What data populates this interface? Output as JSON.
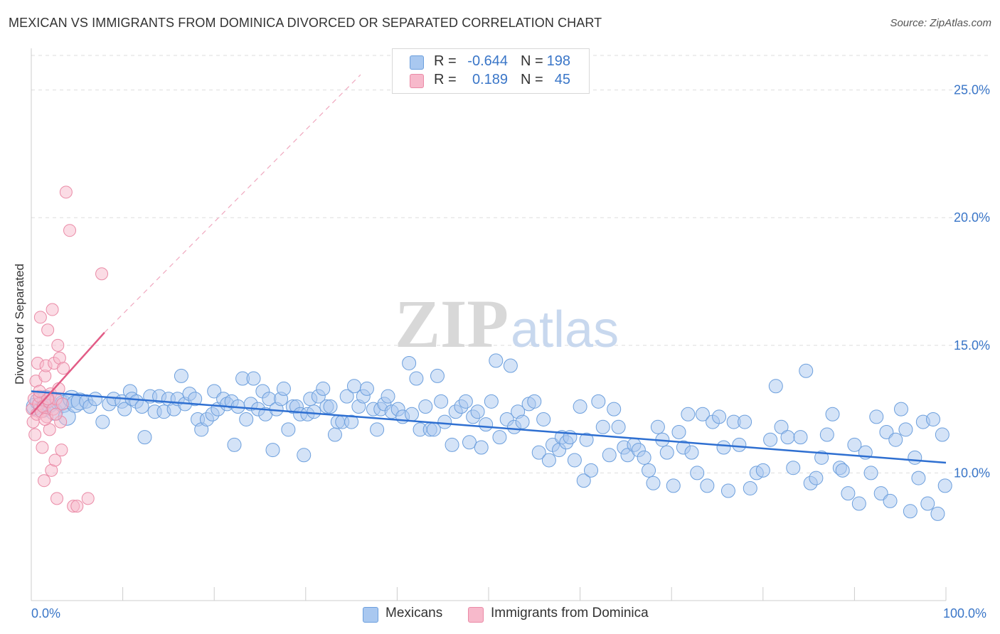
{
  "header": {
    "title": "MEXICAN VS IMMIGRANTS FROM DOMINICA DIVORCED OR SEPARATED CORRELATION CHART",
    "source": "Source: ZipAtlas.com"
  },
  "watermark": {
    "zip": "ZIP",
    "atlas": "atlas"
  },
  "legend": {
    "rows": [
      {
        "r_label": "R =",
        "r_value": "-0.644",
        "n_label": "N =",
        "n_value": "198"
      },
      {
        "r_label": "R =",
        "r_value": "0.189",
        "n_label": "N =",
        "n_value": "45"
      }
    ]
  },
  "bottom_legend": {
    "series1": "Mexicans",
    "series2": "Immigrants from Dominica"
  },
  "colors": {
    "blue_fill": "#a9c8f0",
    "blue_stroke": "#6c9fdd",
    "blue_line": "#2e6fd1",
    "pink_fill": "#f7b9cb",
    "pink_stroke": "#ea8aa6",
    "pink_line": "#e25c86",
    "grid": "#dddddd",
    "axis_text": "#3a76c8"
  },
  "chart_data": {
    "type": "scatter",
    "title": "MEXICAN VS IMMIGRANTS FROM DOMINICA DIVORCED OR SEPARATED CORRELATION CHART",
    "xlabel": "",
    "ylabel": "Divorced or Separated",
    "xlim": [
      0,
      100
    ],
    "ylim": [
      5,
      26.8
    ],
    "x_tick_labels": [
      "0.0%",
      "100.0%"
    ],
    "y_ticks": [
      10,
      15,
      20,
      25
    ],
    "y_tick_labels": [
      "10.0%",
      "15.0%",
      "20.0%",
      "25.0%"
    ],
    "grid": "horizontal dashed",
    "legend_position": "top-center",
    "series": [
      {
        "name": "Mexicans",
        "R": -0.644,
        "N": 198,
        "trend": {
          "x": [
            0,
            100
          ],
          "y": [
            13.2,
            10.4
          ],
          "style": "solid"
        },
        "points": [
          [
            0.4,
            12.6
          ],
          [
            0.8,
            12.8
          ],
          [
            1.2,
            12.5
          ],
          [
            1.6,
            12.9
          ],
          [
            2.0,
            12.7
          ],
          [
            2.5,
            12.4
          ],
          [
            3.0,
            12.8
          ],
          [
            3.5,
            12.7
          ],
          [
            3.9,
            12.2
          ],
          [
            4.4,
            12.9
          ],
          [
            4.8,
            12.7
          ],
          [
            5.3,
            12.8
          ],
          [
            6.0,
            12.8
          ],
          [
            6.4,
            12.6
          ],
          [
            7.0,
            12.9
          ],
          [
            7.8,
            12.0
          ],
          [
            8.5,
            12.7
          ],
          [
            9.0,
            12.9
          ],
          [
            9.9,
            12.8
          ],
          [
            10.2,
            12.5
          ],
          [
            10.8,
            13.2
          ],
          [
            11.0,
            12.9
          ],
          [
            11.5,
            12.8
          ],
          [
            12.1,
            12.6
          ],
          [
            12.4,
            11.4
          ],
          [
            13.0,
            13.0
          ],
          [
            13.5,
            12.4
          ],
          [
            14.0,
            13.0
          ],
          [
            14.5,
            12.4
          ],
          [
            15.0,
            12.9
          ],
          [
            15.6,
            12.5
          ],
          [
            16.0,
            12.9
          ],
          [
            16.4,
            13.8
          ],
          [
            16.8,
            12.7
          ],
          [
            17.3,
            13.1
          ],
          [
            17.9,
            12.9
          ],
          [
            18.2,
            12.1
          ],
          [
            18.6,
            11.7
          ],
          [
            19.2,
            12.1
          ],
          [
            19.8,
            12.3
          ],
          [
            20.0,
            13.2
          ],
          [
            20.4,
            12.5
          ],
          [
            21.0,
            12.9
          ],
          [
            21.4,
            12.7
          ],
          [
            21.9,
            12.8
          ],
          [
            22.2,
            11.1
          ],
          [
            22.6,
            12.6
          ],
          [
            23.1,
            13.7
          ],
          [
            23.5,
            12.1
          ],
          [
            24.0,
            12.7
          ],
          [
            24.3,
            13.7
          ],
          [
            24.8,
            12.5
          ],
          [
            25.3,
            13.2
          ],
          [
            25.6,
            12.3
          ],
          [
            26.0,
            12.9
          ],
          [
            26.4,
            10.9
          ],
          [
            26.8,
            12.5
          ],
          [
            27.3,
            12.9
          ],
          [
            27.6,
            13.3
          ],
          [
            28.1,
            11.7
          ],
          [
            28.6,
            12.6
          ],
          [
            29.0,
            12.6
          ],
          [
            29.4,
            12.3
          ],
          [
            29.8,
            10.7
          ],
          [
            30.2,
            12.3
          ],
          [
            30.5,
            12.9
          ],
          [
            30.9,
            12.4
          ],
          [
            31.4,
            13.0
          ],
          [
            31.9,
            13.3
          ],
          [
            32.3,
            12.6
          ],
          [
            32.7,
            12.6
          ],
          [
            33.2,
            11.5
          ],
          [
            33.5,
            12.0
          ],
          [
            34.0,
            12.0
          ],
          [
            34.5,
            13.0
          ],
          [
            35.0,
            12.0
          ],
          [
            35.3,
            13.4
          ],
          [
            35.8,
            12.6
          ],
          [
            36.3,
            13.0
          ],
          [
            36.7,
            13.3
          ],
          [
            37.4,
            12.5
          ],
          [
            37.8,
            11.7
          ],
          [
            38.2,
            12.5
          ],
          [
            38.6,
            12.7
          ],
          [
            39.0,
            13.0
          ],
          [
            39.4,
            12.4
          ],
          [
            40.1,
            12.5
          ],
          [
            40.6,
            12.2
          ],
          [
            41.3,
            14.3
          ],
          [
            41.6,
            12.3
          ],
          [
            42.1,
            13.7
          ],
          [
            42.5,
            11.7
          ],
          [
            43.1,
            12.6
          ],
          [
            43.6,
            11.7
          ],
          [
            44.0,
            11.7
          ],
          [
            44.4,
            13.8
          ],
          [
            44.8,
            12.8
          ],
          [
            45.2,
            12.0
          ],
          [
            46.0,
            11.1
          ],
          [
            46.4,
            12.4
          ],
          [
            47.0,
            12.6
          ],
          [
            47.5,
            12.8
          ],
          [
            47.9,
            11.2
          ],
          [
            48.3,
            12.2
          ],
          [
            48.8,
            12.4
          ],
          [
            49.2,
            11.0
          ],
          [
            49.7,
            11.9
          ],
          [
            50.3,
            12.8
          ],
          [
            50.8,
            14.4
          ],
          [
            51.2,
            11.4
          ],
          [
            52.0,
            12.1
          ],
          [
            52.4,
            14.2
          ],
          [
            52.8,
            11.8
          ],
          [
            53.2,
            12.4
          ],
          [
            53.7,
            12.0
          ],
          [
            54.4,
            12.7
          ],
          [
            55.0,
            12.8
          ],
          [
            55.5,
            10.8
          ],
          [
            56.0,
            12.1
          ],
          [
            56.6,
            10.5
          ],
          [
            57.0,
            11.1
          ],
          [
            57.7,
            10.9
          ],
          [
            58.0,
            11.4
          ],
          [
            58.5,
            11.2
          ],
          [
            58.9,
            11.4
          ],
          [
            59.4,
            10.5
          ],
          [
            60.0,
            12.6
          ],
          [
            60.4,
            9.7
          ],
          [
            60.7,
            11.3
          ],
          [
            61.2,
            10.1
          ],
          [
            62.0,
            12.8
          ],
          [
            62.5,
            11.8
          ],
          [
            63.2,
            10.7
          ],
          [
            63.7,
            12.5
          ],
          [
            64.2,
            11.8
          ],
          [
            64.8,
            11.0
          ],
          [
            65.2,
            10.7
          ],
          [
            65.9,
            11.1
          ],
          [
            66.4,
            10.9
          ],
          [
            67.0,
            10.6
          ],
          [
            67.5,
            10.1
          ],
          [
            68.0,
            9.6
          ],
          [
            68.5,
            11.8
          ],
          [
            69.0,
            11.3
          ],
          [
            69.5,
            10.8
          ],
          [
            70.2,
            9.5
          ],
          [
            70.8,
            11.6
          ],
          [
            71.3,
            11.0
          ],
          [
            71.8,
            12.3
          ],
          [
            72.2,
            10.8
          ],
          [
            72.8,
            10.0
          ],
          [
            73.4,
            12.3
          ],
          [
            73.9,
            9.5
          ],
          [
            74.5,
            12.0
          ],
          [
            75.2,
            12.2
          ],
          [
            75.7,
            11.0
          ],
          [
            76.2,
            9.3
          ],
          [
            76.8,
            12.0
          ],
          [
            77.4,
            11.1
          ],
          [
            78.0,
            12.0
          ],
          [
            78.6,
            9.4
          ],
          [
            79.3,
            10.0
          ],
          [
            80.0,
            10.1
          ],
          [
            80.8,
            11.3
          ],
          [
            81.4,
            13.4
          ],
          [
            82.0,
            11.8
          ],
          [
            82.7,
            11.4
          ],
          [
            83.3,
            10.2
          ],
          [
            84.1,
            11.4
          ],
          [
            84.7,
            14.0
          ],
          [
            85.2,
            9.6
          ],
          [
            85.8,
            9.8
          ],
          [
            86.4,
            10.6
          ],
          [
            87.0,
            11.5
          ],
          [
            87.6,
            12.3
          ],
          [
            88.4,
            10.2
          ],
          [
            88.7,
            10.1
          ],
          [
            89.3,
            9.2
          ],
          [
            90.0,
            11.1
          ],
          [
            90.5,
            8.8
          ],
          [
            91.2,
            10.8
          ],
          [
            91.8,
            10.0
          ],
          [
            92.4,
            12.2
          ],
          [
            92.9,
            9.2
          ],
          [
            93.5,
            11.6
          ],
          [
            93.9,
            8.9
          ],
          [
            94.5,
            11.3
          ],
          [
            95.1,
            12.5
          ],
          [
            95.6,
            11.7
          ],
          [
            96.1,
            8.5
          ],
          [
            96.6,
            10.6
          ],
          [
            97.0,
            9.8
          ],
          [
            97.5,
            12.0
          ],
          [
            98.0,
            8.8
          ],
          [
            98.6,
            12.1
          ],
          [
            99.1,
            8.4
          ],
          [
            99.6,
            11.5
          ],
          [
            99.9,
            9.5
          ]
        ]
      },
      {
        "name": "Immigrants from Dominica",
        "R": 0.189,
        "N": 45,
        "trend": {
          "x": [
            0,
            8
          ],
          "y": [
            12.3,
            15.5
          ],
          "style": "solid",
          "extended": {
            "x": [
              8,
              36
            ],
            "y": [
              15.5,
              25.6
            ],
            "style": "dashed"
          }
        },
        "points": [
          [
            0.1,
            12.5
          ],
          [
            0.2,
            12.0
          ],
          [
            0.3,
            12.9
          ],
          [
            0.4,
            11.5
          ],
          [
            0.5,
            13.6
          ],
          [
            0.6,
            12.3
          ],
          [
            0.7,
            14.3
          ],
          [
            0.8,
            12.7
          ],
          [
            0.9,
            13.0
          ],
          [
            1.0,
            16.1
          ],
          [
            1.1,
            12.4
          ],
          [
            1.2,
            11.0
          ],
          [
            1.3,
            12.6
          ],
          [
            1.4,
            9.7
          ],
          [
            1.5,
            13.8
          ],
          [
            1.6,
            14.2
          ],
          [
            1.7,
            12.2
          ],
          [
            1.8,
            15.6
          ],
          [
            1.9,
            12.8
          ],
          [
            2.0,
            11.7
          ],
          [
            2.1,
            13.1
          ],
          [
            2.2,
            10.1
          ],
          [
            2.3,
            16.4
          ],
          [
            2.4,
            12.5
          ],
          [
            2.5,
            14.3
          ],
          [
            2.6,
            10.5
          ],
          [
            2.7,
            12.9
          ],
          [
            2.8,
            9.0
          ],
          [
            2.9,
            15.0
          ],
          [
            3.0,
            13.3
          ],
          [
            3.1,
            14.5
          ],
          [
            3.2,
            12.0
          ],
          [
            3.3,
            10.9
          ],
          [
            3.4,
            12.7
          ],
          [
            3.5,
            14.1
          ],
          [
            2.7,
            12.3
          ],
          [
            1.8,
            12.9
          ],
          [
            0.9,
            13.2
          ],
          [
            3.8,
            21.0
          ],
          [
            4.2,
            19.5
          ],
          [
            4.6,
            8.7
          ],
          [
            5.0,
            8.7
          ],
          [
            6.2,
            9.0
          ],
          [
            7.7,
            17.8
          ],
          [
            1.5,
            12.1
          ]
        ]
      }
    ]
  }
}
